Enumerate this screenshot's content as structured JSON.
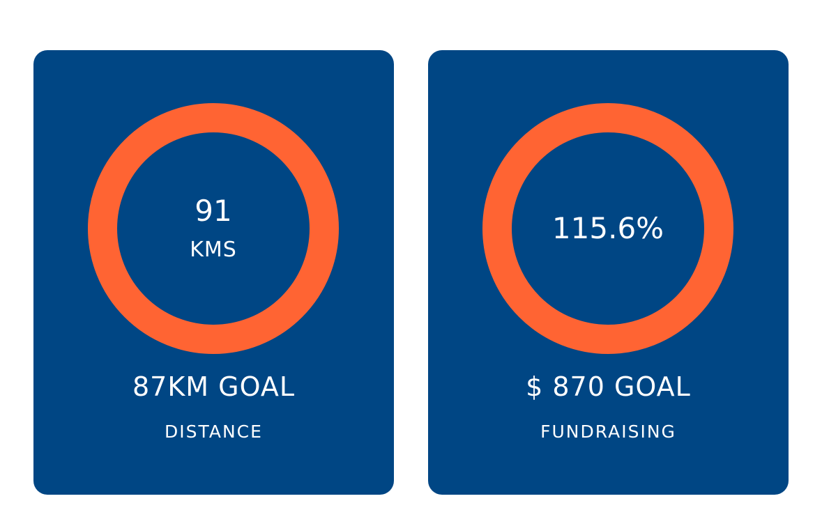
{
  "colors": {
    "card_background": "#004684",
    "ring": "#FF6433",
    "text": "#FFFFFF",
    "page_background": "#FFFFFF"
  },
  "cards": [
    {
      "value": "91",
      "unit": "KMS",
      "goal": "87KM GOAL",
      "label": "DISTANCE",
      "progress_fraction": 1.0
    },
    {
      "value": "115.6%",
      "unit": "",
      "goal": "$ 870 GOAL",
      "label": "FUNDRAISING",
      "progress_fraction": 1.0
    }
  ]
}
